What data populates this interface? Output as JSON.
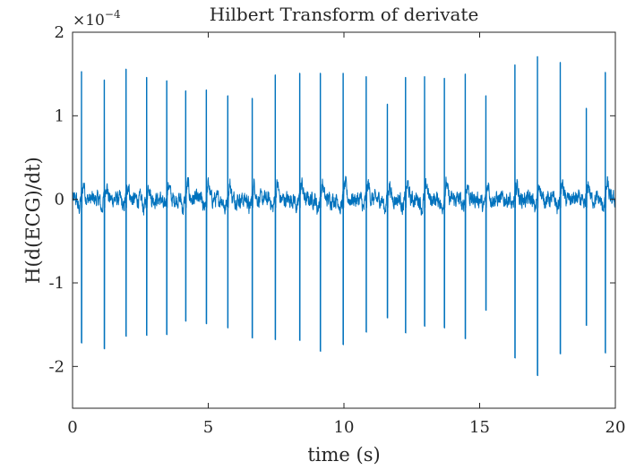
{
  "chart_data": {
    "type": "line",
    "title": "Hilbert Transform of derivate",
    "xlabel": "time (s)",
    "ylabel": "H(d(ECG)/dt)",
    "exponent_label": "×10",
    "exponent_power": "−4",
    "xlim": [
      0,
      20
    ],
    "ylim": [
      -2.5,
      2
    ],
    "y_scale_factor": 0.0001,
    "xticks": [
      {
        "value": 0,
        "label": "0"
      },
      {
        "value": 5,
        "label": "5"
      },
      {
        "value": 10,
        "label": "10"
      },
      {
        "value": 15,
        "label": "15"
      },
      {
        "value": 20,
        "label": "20"
      }
    ],
    "yticks": [
      {
        "value": 2,
        "label": "2"
      },
      {
        "value": 1,
        "label": "1"
      },
      {
        "value": 0,
        "label": "0"
      },
      {
        "value": -1,
        "label": "-1"
      },
      {
        "value": -2,
        "label": "-2"
      }
    ],
    "grid": false,
    "box": true,
    "line_color": "#0072BD",
    "noise_band": [
      -0.25,
      0.2
    ],
    "beats": [
      {
        "t": 0.33,
        "peak": 1.53,
        "trough": -1.72
      },
      {
        "t": 1.17,
        "peak": 1.43,
        "trough": -1.79
      },
      {
        "t": 1.97,
        "peak": 1.56,
        "trough": -1.64
      },
      {
        "t": 2.73,
        "peak": 1.46,
        "trough": -1.63
      },
      {
        "t": 3.47,
        "peak": 1.42,
        "trough": -1.62
      },
      {
        "t": 4.17,
        "peak": 1.3,
        "trough": -1.46
      },
      {
        "t": 4.93,
        "peak": 1.31,
        "trough": -1.49
      },
      {
        "t": 5.72,
        "peak": 1.24,
        "trough": -1.54
      },
      {
        "t": 6.62,
        "peak": 1.21,
        "trough": -1.66
      },
      {
        "t": 7.47,
        "peak": 1.49,
        "trough": -1.68
      },
      {
        "t": 8.37,
        "peak": 1.51,
        "trough": -1.69
      },
      {
        "t": 9.13,
        "peak": 1.51,
        "trough": -1.82
      },
      {
        "t": 9.97,
        "peak": 1.51,
        "trough": -1.74
      },
      {
        "t": 10.82,
        "peak": 1.47,
        "trough": -1.59
      },
      {
        "t": 11.6,
        "peak": 1.14,
        "trough": -1.42
      },
      {
        "t": 12.27,
        "peak": 1.46,
        "trough": -1.6
      },
      {
        "t": 12.97,
        "peak": 1.47,
        "trough": -1.52
      },
      {
        "t": 13.7,
        "peak": 1.45,
        "trough": -1.54
      },
      {
        "t": 14.47,
        "peak": 1.5,
        "trough": -1.67
      },
      {
        "t": 15.23,
        "peak": 1.24,
        "trough": -1.33
      },
      {
        "t": 16.3,
        "peak": 1.61,
        "trough": -1.9
      },
      {
        "t": 17.13,
        "peak": 1.71,
        "trough": -2.11
      },
      {
        "t": 17.97,
        "peak": 1.64,
        "trough": -1.85
      },
      {
        "t": 18.93,
        "peak": 1.09,
        "trough": -1.51
      },
      {
        "t": 19.63,
        "peak": 1.52,
        "trough": -1.84
      }
    ]
  }
}
